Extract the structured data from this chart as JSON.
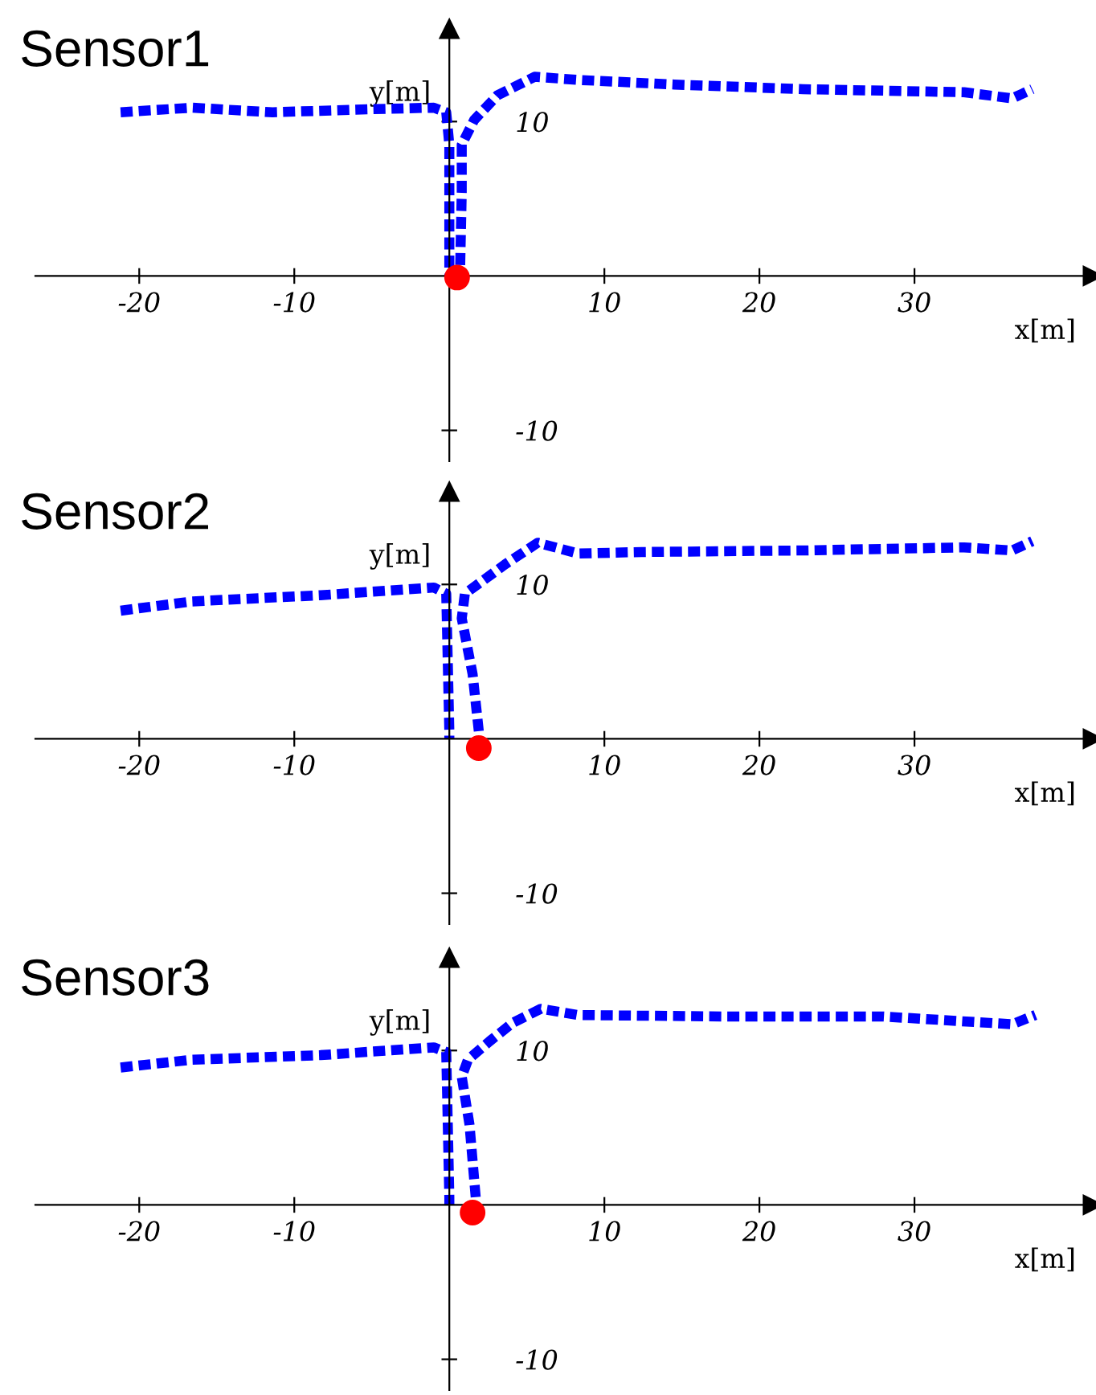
{
  "chart_data": [
    {
      "type": "line",
      "title": "Sensor1",
      "xlabel": "x[m]",
      "ylabel": "y[m]",
      "xlim": [
        -26.7,
        41.5
      ],
      "ylim": [
        -12,
        16
      ],
      "xticks": [
        -20,
        -10,
        10,
        20,
        30
      ],
      "yticks": [
        -10,
        10
      ],
      "grid": false,
      "series": [
        {
          "color": "#0000ff",
          "line_style": "dashed",
          "marker": "none",
          "x": [
            -21.2,
            -16.6,
            -11.4,
            -5.2,
            -1,
            -0.2,
            0,
            0,
            0,
            0,
            null,
            0.7,
            0.8,
            0.8,
            1.6,
            3.1,
            5.5,
            8.3,
            14.5,
            22.8,
            33.2,
            36.3,
            37.6
          ],
          "values": [
            10.6,
            10.9,
            10.6,
            10.8,
            10.9,
            10.6,
            8.5,
            4.4,
            0.4,
            0,
            null,
            0.7,
            5.4,
            8.5,
            10.1,
            11.7,
            12.9,
            12.7,
            12.4,
            12.1,
            11.9,
            11.5,
            12.1
          ]
        },
        {
          "type": "scatter",
          "color": "#ff0000",
          "marker": "circle",
          "x": [
            0.5
          ],
          "values": [
            -0.1
          ]
        }
      ]
    },
    {
      "type": "line",
      "title": "Sensor2",
      "xlabel": "x[m]",
      "ylabel": "y[m]",
      "xlim": [
        -26.7,
        41.5
      ],
      "ylim": [
        -12,
        16
      ],
      "xticks": [
        -20,
        -10,
        10,
        20,
        30
      ],
      "yticks": [
        -10,
        10
      ],
      "grid": false,
      "series": [
        {
          "color": "#0000ff",
          "line_style": "dashed",
          "marker": "none",
          "x": [
            -21.2,
            -16.6,
            -8.3,
            -1,
            -0.2,
            0,
            0,
            null,
            1.9,
            1.5,
            0.8,
            1,
            2.1,
            3.6,
            5.7,
            8.3,
            12.4,
            22.8,
            33.2,
            36.3,
            37.6
          ],
          "values": [
            8.3,
            8.9,
            9.3,
            9.8,
            9.4,
            0.5,
            0,
            null,
            0.5,
            4.2,
            7.8,
            9.4,
            10.2,
            11.3,
            12.7,
            12,
            12.1,
            12.2,
            12.4,
            12.2,
            12.8
          ]
        },
        {
          "type": "scatter",
          "color": "#ff0000",
          "marker": "circle",
          "x": [
            1.9
          ],
          "values": [
            -0.6
          ]
        }
      ]
    },
    {
      "type": "line",
      "title": "Sensor3",
      "xlabel": "x[m]",
      "ylabel": "y[m]",
      "xlim": [
        -26.7,
        41.5
      ],
      "ylim": [
        -12,
        16
      ],
      "xticks": [
        -20,
        -10,
        10,
        20,
        30
      ],
      "yticks": [
        -10,
        10
      ],
      "grid": false,
      "series": [
        {
          "color": "#0000ff",
          "line_style": "dashed",
          "marker": "none",
          "x": [
            -21.2,
            -16.6,
            -8.3,
            -1,
            -0.2,
            0,
            0,
            null,
            1.7,
            1.3,
            0.8,
            1.2,
            2.6,
            4.1,
            5.9,
            8.3,
            17.6,
            28,
            36.3,
            37.8
          ],
          "values": [
            8.9,
            9.4,
            9.7,
            10.2,
            9.9,
            0.5,
            0,
            null,
            0.5,
            5.2,
            8.3,
            9.4,
            10.6,
            11.8,
            12.7,
            12.3,
            12.2,
            12.2,
            11.7,
            12.3
          ]
        },
        {
          "type": "scatter",
          "color": "#ff0000",
          "marker": "circle",
          "x": [
            1.5
          ],
          "values": [
            -0.5
          ]
        }
      ]
    }
  ]
}
